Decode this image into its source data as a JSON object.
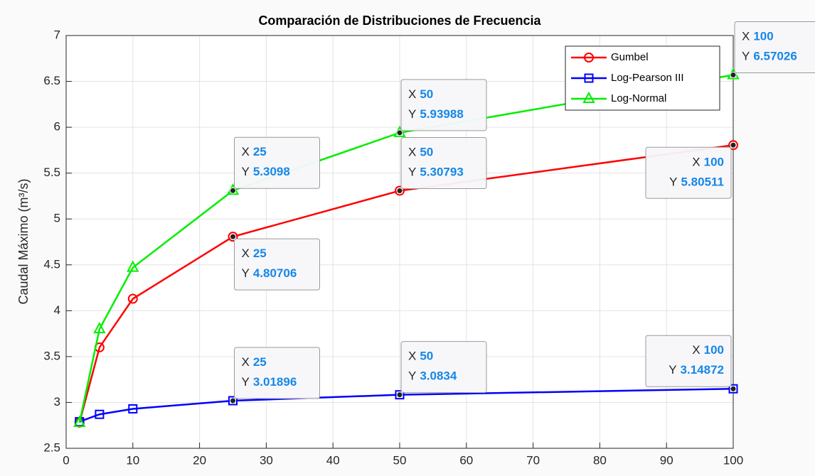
{
  "chart_data": {
    "type": "line",
    "title": "Comparación de Distribuciones de Frecuencia",
    "y_label": "Caudal Máximo (m³/s)",
    "x": [
      2,
      5,
      10,
      25,
      50,
      100
    ],
    "series": [
      {
        "name": "Gumbel",
        "color": "#ff0000",
        "marker": "circle",
        "values": [
          2.78,
          3.6,
          4.13,
          4.80706,
          5.30793,
          5.80511
        ]
      },
      {
        "name": "Log-Pearson III",
        "color": "#0000ff",
        "marker": "square",
        "values": [
          2.79,
          2.87,
          2.93,
          3.01896,
          3.0834,
          3.14872
        ]
      },
      {
        "name": "Log-Normal",
        "color": "#00ee00",
        "marker": "triangle",
        "values": [
          2.78,
          3.8,
          4.47,
          5.3098,
          5.93988,
          6.57026
        ]
      }
    ],
    "xlim": [
      0,
      100
    ],
    "xticks": [
      0,
      10,
      20,
      30,
      40,
      50,
      60,
      70,
      80,
      90,
      100
    ],
    "ylim": [
      2.5,
      7
    ],
    "yticks": [
      2.5,
      3,
      3.5,
      4,
      4.5,
      5,
      5.5,
      6,
      6.5,
      7
    ],
    "grid": true,
    "legend": "top-right",
    "datatip_labels": {
      "x": "X",
      "y": "Y"
    },
    "datatips": [
      {
        "series": 2,
        "index": 3
      },
      {
        "series": 2,
        "index": 4
      },
      {
        "series": 2,
        "index": 5
      },
      {
        "series": 0,
        "index": 3
      },
      {
        "series": 0,
        "index": 4
      },
      {
        "series": 0,
        "index": 5
      },
      {
        "series": 1,
        "index": 3
      },
      {
        "series": 1,
        "index": 4
      },
      {
        "series": 1,
        "index": 5
      }
    ]
  }
}
